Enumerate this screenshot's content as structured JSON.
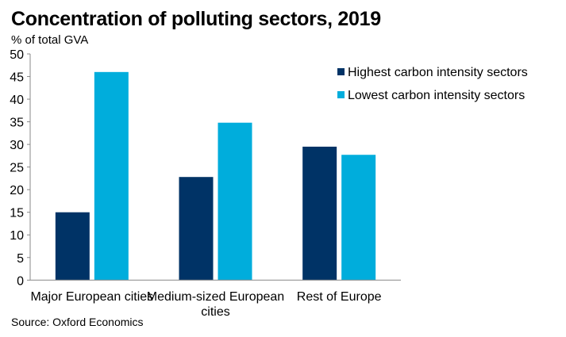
{
  "chart_data": {
    "type": "bar",
    "title": "Concentration of polluting sectors, 2019",
    "ylabel": "% of total GVA",
    "xlabel": "",
    "source": "Source: Oxford Economics",
    "categories": [
      "Major European cities",
      "Medium-sized European cities",
      "Rest of Europe"
    ],
    "category_lines": [
      [
        "Major European cities"
      ],
      [
        "Medium-sized European",
        "cities"
      ],
      [
        "Rest of Europe"
      ]
    ],
    "series": [
      {
        "name": "Highest carbon intensity sectors",
        "color": "#003366",
        "values": [
          15.0,
          22.8,
          29.5
        ]
      },
      {
        "name": "Lowest carbon intensity sectors",
        "color": "#00ADDC",
        "values": [
          46.0,
          34.8,
          27.7
        ]
      }
    ],
    "ylim": [
      0,
      50
    ],
    "yticks": [
      0,
      5,
      10,
      15,
      20,
      25,
      30,
      35,
      40,
      45,
      50
    ],
    "grid": false,
    "legend": "top-right"
  }
}
